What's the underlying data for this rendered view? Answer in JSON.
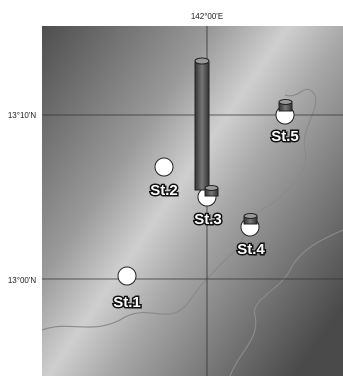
{
  "axes": {
    "top": "142°00'E",
    "left": [
      "13°10'N",
      "13°00'N"
    ]
  },
  "stations": [
    "St.1",
    "St.2",
    "St.3",
    "St.4",
    "St.5"
  ]
}
